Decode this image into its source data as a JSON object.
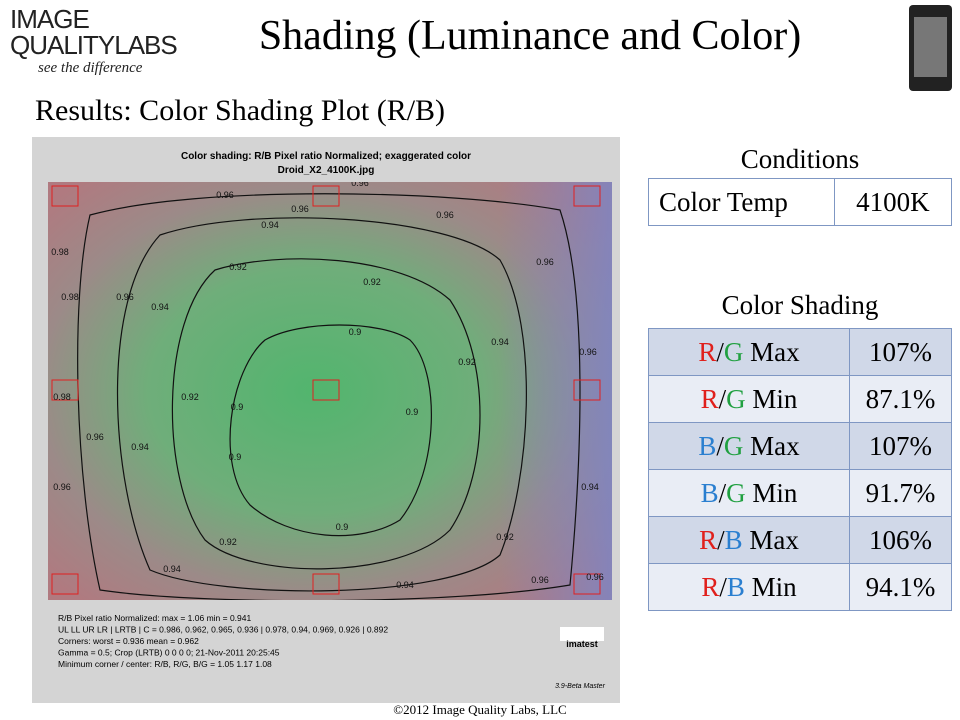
{
  "logo": {
    "line1": "IMAGE",
    "line2": "QUALITYLABS",
    "tagline": "see the difference"
  },
  "title": "Shading (Luminance and Color)",
  "subtitle": "Results:  Color Shading Plot (R/B)",
  "plot": {
    "title": "Color shading:  R/B  Pixel ratio Normalized;  exaggerated color",
    "filename": "Droid_X2_4100K.jpg",
    "contour_labels": [
      "0.96",
      "0.96",
      "0.96",
      "0.96",
      "0.94",
      "0.98",
      "0.98",
      "0.96",
      "0.94",
      "0.92",
      "0.92",
      "0.9",
      "0.94",
      "0.92",
      "0.96",
      "0.96",
      "0.98",
      "0.92",
      "0.9",
      "0.9",
      "0.96",
      "0.94",
      "0.9",
      "0.94",
      "0.9",
      "0.92",
      "0.94",
      "0.94",
      "0.92",
      "0.96",
      "0.96",
      "0.96"
    ],
    "notes": [
      "R/B Pixel ratio Normalized:  max = 1.06  min = 0.941",
      "UL LL UR LR | LRTB | C = 0.986, 0.962, 0.965, 0.936 | 0.978, 0.94, 0.969, 0.926 | 0.892",
      "Corners: worst = 0.936  mean = 0.962",
      "Gamma = 0.5;  Crop (LRTB)  0  0  0  0;   21-Nov-2011 20:25:45",
      "Minimum corner / center: R/B, R/G, B/G = 1.05     1.17     1.08"
    ],
    "brand": "imatest",
    "version": "3.9-Beta Master"
  },
  "conditions": {
    "title": "Conditions",
    "rows": [
      [
        "Color Temp",
        "4100K"
      ]
    ]
  },
  "color_shading": {
    "title": "Color Shading",
    "rows": [
      {
        "num": "R",
        "sep": "/",
        "den": "G",
        "stat": "Max",
        "value": "107%"
      },
      {
        "num": "R",
        "sep": "/",
        "den": "G",
        "stat": "Min",
        "value": "87.1%"
      },
      {
        "num": "B",
        "sep": "/",
        "den": "G",
        "stat": "Max",
        "value": "107%"
      },
      {
        "num": "B",
        "sep": "/",
        "den": "G",
        "stat": "Min",
        "value": "91.7%"
      },
      {
        "num": "R",
        "sep": "/",
        "den": "B",
        "stat": "Max",
        "value": "106%"
      },
      {
        "num": "R",
        "sep": "/",
        "den": "B",
        "stat": "Min",
        "value": "94.1%"
      }
    ]
  },
  "footer": "©2012 Image Quality Labs, LLC"
}
